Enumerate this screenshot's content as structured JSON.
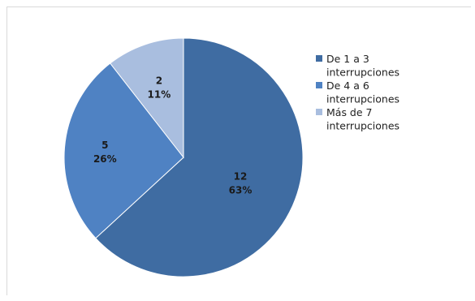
{
  "chart_data": {
    "type": "pie",
    "categories": [
      "De 1 a 3 interrupciones",
      "De 4 a 6 interrupciones",
      "Más de 7 interrupciones"
    ],
    "values": [
      12,
      5,
      2
    ],
    "percent_labels": [
      "63%",
      "26%",
      "11%"
    ],
    "value_labels": [
      "12",
      "5",
      "2"
    ],
    "legend_lines": [
      [
        "De 1 a 3",
        "interrupciones"
      ],
      [
        "De 4 a 6",
        "interrupciones"
      ],
      [
        "Más de 7",
        "interrupciones"
      ]
    ],
    "colors": [
      "#3f6ca2",
      "#4f82c3",
      "#a9bedf"
    ],
    "legend_position": "right",
    "title": ""
  }
}
